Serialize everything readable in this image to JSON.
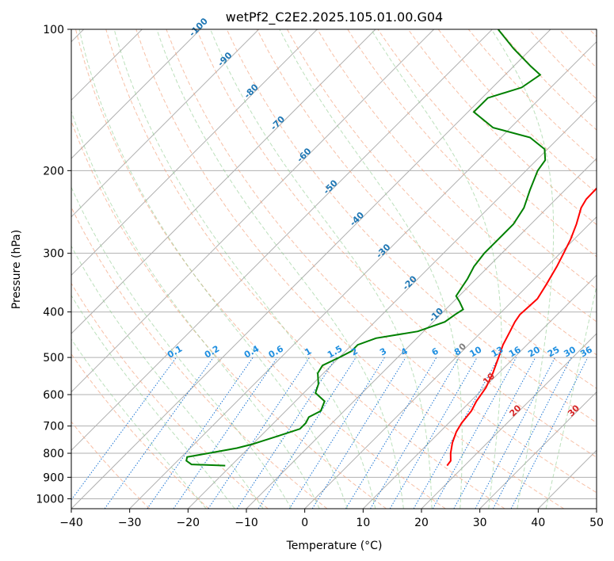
{
  "chart_data": {
    "type": "line",
    "title": "wetPf2_C2E2.2025.105.01.00.G04",
    "xlabel": "Temperature (°C)",
    "ylabel": "Pressure (hPa)",
    "xlim": [
      -40,
      50
    ],
    "ylim": [
      1050,
      100
    ],
    "y_scale": "log",
    "grid": true,
    "x_ticks": [
      -40,
      -30,
      -20,
      -10,
      0,
      10,
      20,
      30,
      40,
      50
    ],
    "x_tick_labels": [
      "−40",
      "−30",
      "−20",
      "−10",
      "0",
      "10",
      "20",
      "30",
      "40",
      "50"
    ],
    "y_ticks": [
      100,
      200,
      300,
      400,
      500,
      600,
      700,
      800,
      900,
      1000
    ],
    "y_tick_labels": [
      "100",
      "200",
      "300",
      "400",
      "500",
      "600",
      "700",
      "800",
      "900",
      "1000"
    ],
    "series": [
      {
        "color": "#ff0000",
        "points": [
          [
            850,
            17.0
          ],
          [
            830,
            16.8
          ],
          [
            800,
            15.5
          ],
          [
            760,
            14.0
          ],
          [
            720,
            12.8
          ],
          [
            690,
            12.2
          ],
          [
            650,
            11.8
          ],
          [
            620,
            11.0
          ],
          [
            580,
            10.3
          ],
          [
            540,
            9.0
          ],
          [
            500,
            7.3
          ],
          [
            470,
            5.9
          ],
          [
            440,
            4.8
          ],
          [
            420,
            4.0
          ],
          [
            405,
            3.6
          ],
          [
            395,
            3.7
          ],
          [
            375,
            3.9
          ],
          [
            350,
            3.0
          ],
          [
            320,
            1.7
          ],
          [
            300,
            0.6
          ],
          [
            280,
            -0.6
          ],
          [
            260,
            -2.2
          ],
          [
            240,
            -4.2
          ],
          [
            230,
            -4.8
          ],
          [
            215,
            -4.9
          ],
          [
            200,
            -4.0
          ],
          [
            185,
            -2.5
          ],
          [
            170,
            0.5
          ],
          [
            160,
            3.0
          ],
          [
            150,
            5.5
          ],
          [
            140,
            7.5
          ],
          [
            130,
            9.0
          ],
          [
            125,
            9.7
          ],
          [
            118,
            12.0
          ],
          [
            110,
            14.0
          ],
          [
            100,
            15.2
          ]
        ]
      },
      {
        "color": "#008000",
        "points": [
          [
            850,
            -21.0
          ],
          [
            845,
            -27.0
          ],
          [
            830,
            -28.5
          ],
          [
            815,
            -29.0
          ],
          [
            800,
            -26.0
          ],
          [
            780,
            -22.0
          ],
          [
            765,
            -20.0
          ],
          [
            755,
            -19.0
          ],
          [
            735,
            -17.0
          ],
          [
            710,
            -14.5
          ],
          [
            690,
            -14.5
          ],
          [
            670,
            -15.0
          ],
          [
            650,
            -14.0
          ],
          [
            620,
            -15.0
          ],
          [
            595,
            -18.0
          ],
          [
            570,
            -19.0
          ],
          [
            540,
            -21.0
          ],
          [
            520,
            -21.5
          ],
          [
            500,
            -20.0
          ],
          [
            485,
            -19.0
          ],
          [
            470,
            -19.0
          ],
          [
            455,
            -17.0
          ],
          [
            440,
            -11.0
          ],
          [
            420,
            -8.0
          ],
          [
            405,
            -7.5
          ],
          [
            395,
            -7.0
          ],
          [
            380,
            -9.0
          ],
          [
            370,
            -10.5
          ],
          [
            355,
            -11.0
          ],
          [
            340,
            -11.5
          ],
          [
            320,
            -12.5
          ],
          [
            300,
            -13.0
          ],
          [
            280,
            -13.0
          ],
          [
            260,
            -13.0
          ],
          [
            240,
            -14.0
          ],
          [
            220,
            -16.0
          ],
          [
            200,
            -18.0
          ],
          [
            190,
            -18.5
          ],
          [
            180,
            -20.5
          ],
          [
            170,
            -25.0
          ],
          [
            162,
            -33.0
          ],
          [
            150,
            -39.0
          ],
          [
            140,
            -39.0
          ],
          [
            133,
            -35.0
          ],
          [
            125,
            -34.0
          ],
          [
            120,
            -37.0
          ],
          [
            110,
            -43.0
          ],
          [
            100,
            -49.0
          ]
        ]
      }
    ],
    "isotherm_labels": [
      "-100",
      "-90",
      "-80",
      "-70",
      "-60",
      "-50",
      "-40",
      "-30",
      "-20",
      "-10",
      "0",
      "10",
      "20",
      "30",
      "40"
    ],
    "mixing_ratio_labels": [
      "0.1",
      "0.2",
      "0.4",
      "0.6",
      "1",
      "1.5",
      "2",
      "3",
      "4",
      "6",
      "8",
      "10",
      "13",
      "16",
      "20",
      "25",
      "30",
      "36"
    ]
  }
}
